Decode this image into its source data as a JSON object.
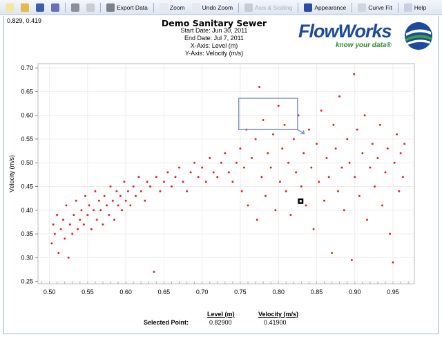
{
  "toolbar": {
    "items": [
      {
        "label": "",
        "icon": "new-icon"
      },
      {
        "label": "",
        "icon": "open-folder-icon"
      },
      {
        "label": "",
        "icon": "save-icon"
      },
      {
        "label": "",
        "icon": "save-as-icon"
      },
      {
        "label": "",
        "icon": "print-icon"
      },
      {
        "label": "",
        "icon": "copy-icon"
      },
      {
        "label": "Export Data",
        "icon": "export-icon"
      },
      {
        "label": "Zoom",
        "icon": "zoom-in-icon"
      },
      {
        "label": "Undo Zoom",
        "icon": "undo-zoom-icon"
      },
      {
        "label": "Axis & Scaling",
        "icon": "axis-scaling-icon",
        "disabled": true
      },
      {
        "label": "Appearance",
        "icon": "appearance-icon"
      },
      {
        "label": "Curve Fit",
        "icon": "curve-fit-icon"
      },
      {
        "label": "Help",
        "icon": "help-icon"
      }
    ]
  },
  "cursor_readout": "0.829, 0.419",
  "header": {
    "title": "Demo Sanitary Sewer",
    "start_date": "Start Date:  Jun 30, 2011",
    "end_date": "End Date:  Jul 7, 2011",
    "x_axis": "X-Axis:  Level (m)",
    "y_axis": "Y-Axis:  Velocity (m/s)"
  },
  "logo": {
    "name": "FlowWorks",
    "tagline": "know your data®",
    "colors": {
      "blue": "#1c4a9c",
      "green": "#2c8a2c"
    }
  },
  "selected_point": {
    "label": "Selected Point:",
    "level_header": "Level (m)",
    "velocity_header": "Velocity (m/s)",
    "level": "0.82900",
    "velocity": "0.41900"
  },
  "chart_data": {
    "type": "scatter",
    "xlabel": "Level (m)",
    "ylabel": "Velocity (m/s)",
    "xlim": [
      0.485,
      0.978
    ],
    "ylim": [
      0.245,
      0.709
    ],
    "xticks": [
      "0.50",
      "0.55",
      "0.60",
      "0.65",
      "0.70",
      "0.75",
      "0.80",
      "0.85",
      "0.90",
      "0.95"
    ],
    "yticks": [
      "0.25",
      "0.30",
      "0.35",
      "0.40",
      "0.45",
      "0.50",
      "0.55",
      "0.60",
      "0.65",
      "0.70"
    ],
    "grid": true,
    "point_color": "#e82020",
    "selected": {
      "x": 0.829,
      "y": 0.419
    },
    "zoom_box": {
      "x": [
        0.748,
        0.825
      ],
      "y": [
        0.57,
        0.636
      ]
    },
    "points": [
      [
        0.503,
        0.33
      ],
      [
        0.505,
        0.37
      ],
      [
        0.507,
        0.35
      ],
      [
        0.51,
        0.39
      ],
      [
        0.512,
        0.31
      ],
      [
        0.515,
        0.36
      ],
      [
        0.518,
        0.38
      ],
      [
        0.52,
        0.34
      ],
      [
        0.522,
        0.41
      ],
      [
        0.525,
        0.3
      ],
      [
        0.527,
        0.37
      ],
      [
        0.53,
        0.35
      ],
      [
        0.532,
        0.39
      ],
      [
        0.535,
        0.42
      ],
      [
        0.537,
        0.36
      ],
      [
        0.54,
        0.38
      ],
      [
        0.542,
        0.4
      ],
      [
        0.545,
        0.37
      ],
      [
        0.547,
        0.43
      ],
      [
        0.55,
        0.39
      ],
      [
        0.552,
        0.41
      ],
      [
        0.555,
        0.36
      ],
      [
        0.558,
        0.4
      ],
      [
        0.56,
        0.44
      ],
      [
        0.562,
        0.38
      ],
      [
        0.565,
        0.42
      ],
      [
        0.567,
        0.4
      ],
      [
        0.57,
        0.37
      ],
      [
        0.572,
        0.43
      ],
      [
        0.575,
        0.41
      ],
      [
        0.578,
        0.39
      ],
      [
        0.58,
        0.45
      ],
      [
        0.583,
        0.42
      ],
      [
        0.585,
        0.38
      ],
      [
        0.588,
        0.44
      ],
      [
        0.59,
        0.41
      ],
      [
        0.593,
        0.43
      ],
      [
        0.595,
        0.4
      ],
      [
        0.598,
        0.46
      ],
      [
        0.6,
        0.42
      ],
      [
        0.603,
        0.44
      ],
      [
        0.606,
        0.41
      ],
      [
        0.61,
        0.45
      ],
      [
        0.613,
        0.43
      ],
      [
        0.617,
        0.47
      ],
      [
        0.62,
        0.44
      ],
      [
        0.625,
        0.42
      ],
      [
        0.628,
        0.46
      ],
      [
        0.632,
        0.45
      ],
      [
        0.637,
        0.27
      ],
      [
        0.64,
        0.47
      ],
      [
        0.645,
        0.44
      ],
      [
        0.65,
        0.46
      ],
      [
        0.655,
        0.48
      ],
      [
        0.66,
        0.45
      ],
      [
        0.665,
        0.47
      ],
      [
        0.67,
        0.49
      ],
      [
        0.675,
        0.46
      ],
      [
        0.68,
        0.44
      ],
      [
        0.685,
        0.48
      ],
      [
        0.69,
        0.5
      ],
      [
        0.695,
        0.47
      ],
      [
        0.7,
        0.49
      ],
      [
        0.705,
        0.46
      ],
      [
        0.71,
        0.51
      ],
      [
        0.715,
        0.48
      ],
      [
        0.72,
        0.47
      ],
      [
        0.725,
        0.5
      ],
      [
        0.73,
        0.52
      ],
      [
        0.735,
        0.48
      ],
      [
        0.74,
        0.46
      ],
      [
        0.745,
        0.5
      ],
      [
        0.75,
        0.53
      ],
      [
        0.752,
        0.44
      ],
      [
        0.755,
        0.49
      ],
      [
        0.758,
        0.57
      ],
      [
        0.76,
        0.41
      ],
      [
        0.765,
        0.51
      ],
      [
        0.77,
        0.55
      ],
      [
        0.772,
        0.38
      ],
      [
        0.775,
        0.66
      ],
      [
        0.778,
        0.47
      ],
      [
        0.78,
        0.59
      ],
      [
        0.783,
        0.43
      ],
      [
        0.786,
        0.52
      ],
      [
        0.79,
        0.49
      ],
      [
        0.793,
        0.56
      ],
      [
        0.796,
        0.4
      ],
      [
        0.8,
        0.62
      ],
      [
        0.802,
        0.46
      ],
      [
        0.805,
        0.53
      ],
      [
        0.808,
        0.58
      ],
      [
        0.81,
        0.44
      ],
      [
        0.813,
        0.5
      ],
      [
        0.816,
        0.39
      ],
      [
        0.82,
        0.55
      ],
      [
        0.823,
        0.48
      ],
      [
        0.826,
        0.6
      ],
      [
        0.83,
        0.45
      ],
      [
        0.833,
        0.52
      ],
      [
        0.836,
        0.41
      ],
      [
        0.84,
        0.57
      ],
      [
        0.843,
        0.49
      ],
      [
        0.846,
        0.36
      ],
      [
        0.85,
        0.54
      ],
      [
        0.853,
        0.46
      ],
      [
        0.856,
        0.61
      ],
      [
        0.86,
        0.42
      ],
      [
        0.863,
        0.51
      ],
      [
        0.866,
        0.47
      ],
      [
        0.87,
        0.31
      ],
      [
        0.872,
        0.58
      ],
      [
        0.875,
        0.53
      ],
      [
        0.878,
        0.44
      ],
      [
        0.88,
        0.64
      ],
      [
        0.883,
        0.49
      ],
      [
        0.886,
        0.4
      ],
      [
        0.89,
        0.55
      ],
      [
        0.893,
        0.5
      ],
      [
        0.896,
        0.295
      ],
      [
        0.899,
        0.687
      ],
      [
        0.9,
        0.47
      ],
      [
        0.903,
        0.57
      ],
      [
        0.906,
        0.43
      ],
      [
        0.91,
        0.52
      ],
      [
        0.913,
        0.6
      ],
      [
        0.916,
        0.38
      ],
      [
        0.92,
        0.49
      ],
      [
        0.923,
        0.54
      ],
      [
        0.926,
        0.45
      ],
      [
        0.93,
        0.51
      ],
      [
        0.933,
        0.58
      ],
      [
        0.936,
        0.41
      ],
      [
        0.94,
        0.48
      ],
      [
        0.943,
        0.53
      ],
      [
        0.946,
        0.35
      ],
      [
        0.95,
        0.29
      ],
      [
        0.952,
        0.5
      ],
      [
        0.955,
        0.56
      ],
      [
        0.958,
        0.44
      ],
      [
        0.96,
        0.52
      ],
      [
        0.963,
        0.47
      ],
      [
        0.965,
        0.54
      ]
    ]
  }
}
